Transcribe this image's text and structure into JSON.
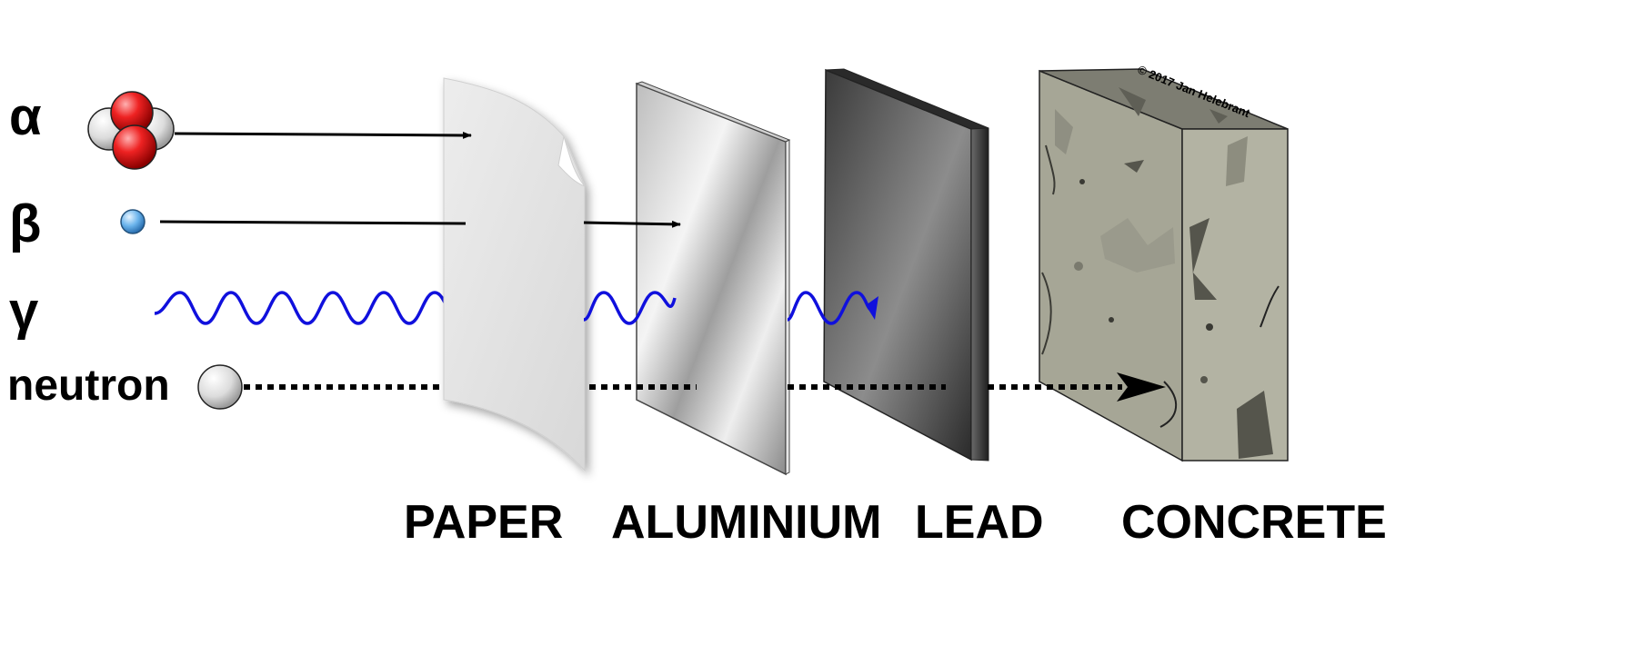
{
  "radiation_labels": {
    "alpha": "α",
    "beta": "β",
    "gamma": "γ",
    "neutron": "neutron"
  },
  "materials": {
    "paper": "PAPER",
    "aluminium": "ALUMINIUM",
    "lead": "LEAD",
    "concrete": "CONCRETE"
  },
  "copyright": "© 2017 Jan Helebrant",
  "colors": {
    "proton": "#e02020",
    "neutron_particle": "#e6e6e6",
    "electron": "#5aa8e8",
    "gamma_wave": "#1010dd",
    "concrete": "#a9a99a",
    "lead": "#555555"
  }
}
